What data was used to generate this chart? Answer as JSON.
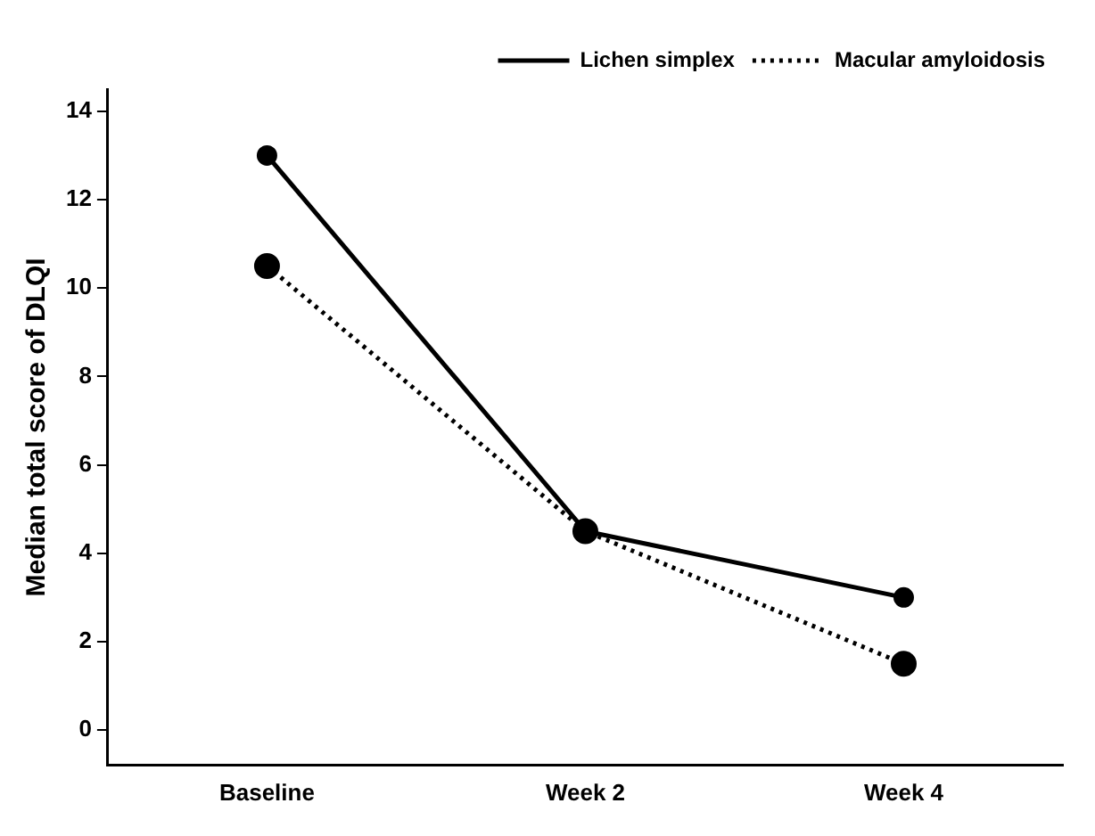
{
  "chart_data": {
    "type": "line",
    "ylabel": "Median total score of DLQI",
    "categories": [
      "Baseline",
      "Week 2",
      "Week 4"
    ],
    "series": [
      {
        "name": "Lichen simplex",
        "color": "#000000",
        "values": [
          13,
          4.5,
          3
        ],
        "line_style": "solid"
      },
      {
        "name": "Macular amyloidosis",
        "color": "#000000",
        "values": [
          10.5,
          4.5,
          1.5
        ],
        "line_style": "dotted"
      }
    ],
    "ylim": [
      -0.8,
      14.5
    ],
    "yticks": [
      0,
      2,
      4,
      6,
      8,
      10,
      12,
      14
    ],
    "marker": "circle",
    "grid": false,
    "legend": "top right"
  }
}
